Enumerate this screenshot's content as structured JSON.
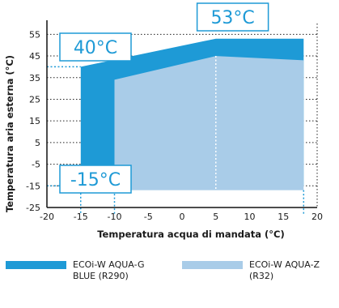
{
  "chart_data": {
    "type": "area",
    "xlabel": "Temperatura acqua di mandata (°C)",
    "ylabel": "Temperatura aria esterna (°C)",
    "xlim": [
      -20,
      20
    ],
    "ylim": [
      -25,
      60
    ],
    "xticks": [
      "-20",
      "-15",
      "-10",
      "-5",
      "0",
      "5",
      "10",
      "15",
      "20"
    ],
    "yticks": [
      "55",
      "45",
      "35",
      "25",
      "15",
      "5",
      "-5",
      "-15",
      "-25"
    ],
    "series": [
      {
        "name": "ECOi-W AQUA-G BLUE (R290)",
        "color": "#1e9ad6",
        "polygon": [
          [
            -15,
            -15
          ],
          [
            -15,
            40
          ],
          [
            5,
            53
          ],
          [
            18,
            53
          ],
          [
            18,
            -15
          ]
        ]
      },
      {
        "name": "ECOi-W AQUA-Z (R32)",
        "color": "#a9cce8",
        "polygon": [
          [
            -10,
            -17
          ],
          [
            -10,
            34
          ],
          [
            5,
            45
          ],
          [
            18,
            43
          ],
          [
            18,
            -17
          ]
        ]
      }
    ],
    "annotations": [
      {
        "label": "53°C",
        "x": 5,
        "y": 53
      },
      {
        "label": "40°C",
        "x": -15,
        "y": 40
      },
      {
        "label": "-15°C",
        "x": -15,
        "y": -15
      }
    ]
  },
  "legend": [
    {
      "label": "ECOi-W AQUA-G BLUE (R290)",
      "color": "#1e9ad6"
    },
    {
      "label": "ECOi-W AQUA-Z (R32)",
      "color": "#a9cce8"
    }
  ]
}
